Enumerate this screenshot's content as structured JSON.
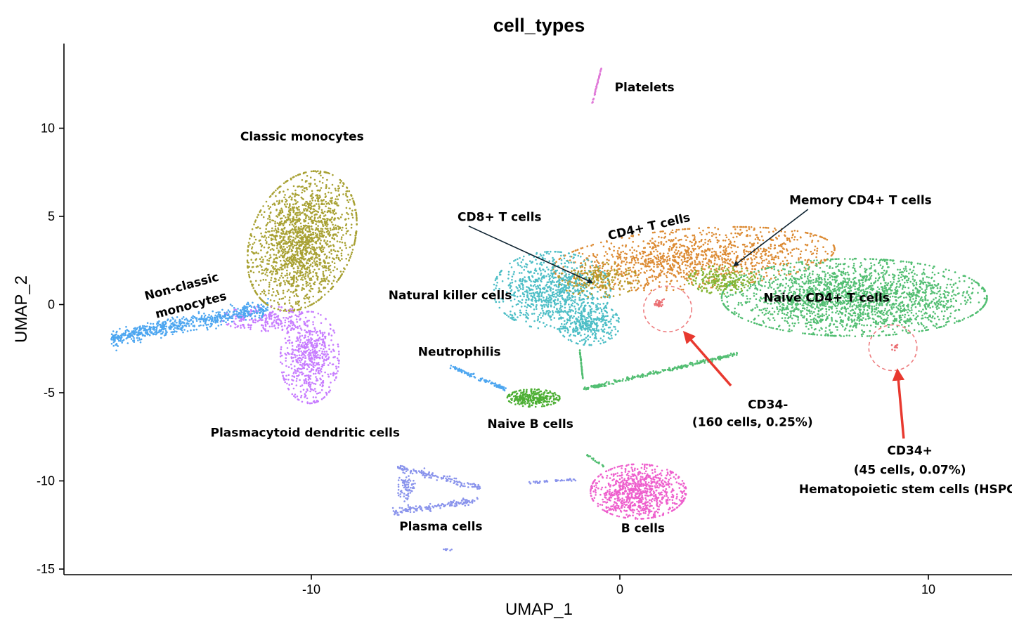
{
  "chart_data": {
    "type": "scatter",
    "title": "cell_types",
    "xlabel": "UMAP_1",
    "ylabel": "UMAP_2",
    "xlim": [
      -20.2,
      12.6
    ],
    "ylim": [
      -15.4,
      15
    ],
    "xticks": [
      {
        "value": -10,
        "label": "-10"
      },
      {
        "value": 0,
        "label": "0"
      },
      {
        "value": 10,
        "label": "10"
      }
    ],
    "yticks": [
      {
        "value": 10,
        "label": "10"
      },
      {
        "value": 5,
        "label": "5"
      },
      {
        "value": 0,
        "label": "0"
      },
      {
        "value": -5,
        "label": "-5"
      },
      {
        "value": -10,
        "label": "-10"
      },
      {
        "value": -15,
        "label": "-15"
      }
    ],
    "grid": false,
    "legend": "none",
    "clusters": [
      {
        "color": "#A8A133",
        "n": 1800,
        "shape": "ellipse",
        "cx": -10.3,
        "cy": 3.6,
        "rx": 1.7,
        "ry": 4.0,
        "rot": -8
      },
      {
        "color": "#C77CFF",
        "n": 600,
        "shape": "ellipse",
        "cx": -10.05,
        "cy": -3.0,
        "rx": 0.95,
        "ry": 2.6,
        "rot": 0
      },
      {
        "color": "#C77CFF",
        "n": 220,
        "shape": "ellipse",
        "cx": -11.5,
        "cy": -0.8,
        "rx": 1.4,
        "ry": 0.7,
        "rot": 0
      },
      {
        "color": "#4DA6F0",
        "n": 650,
        "shape": "band",
        "x0": -16.5,
        "y0": -1.9,
        "x1": -11.4,
        "y1": -0.2,
        "w0": 0.55,
        "w1": 0.5
      },
      {
        "color": "#E07AD8",
        "n": 60,
        "shape": "band",
        "x0": -0.9,
        "y0": 11.4,
        "x1": -0.6,
        "y1": 13.4,
        "w0": 0.12,
        "w1": 0.08
      },
      {
        "color": "#DC8A32",
        "n": 1300,
        "shape": "ellipse",
        "cx": 2.4,
        "cy": 2.6,
        "rx": 4.6,
        "ry": 1.7,
        "rot": 8
      },
      {
        "color": "#4DBEC6",
        "n": 900,
        "shape": "ellipse",
        "cx": -2.2,
        "cy": 0.8,
        "rx": 1.9,
        "ry": 2.2,
        "rot": 0
      },
      {
        "color": "#4DBEC6",
        "n": 350,
        "shape": "ellipse",
        "cx": -1.0,
        "cy": -1.1,
        "rx": 1.0,
        "ry": 1.2,
        "rot": 0
      },
      {
        "color": "#B79A28",
        "n": 200,
        "shape": "ellipse",
        "cx": -0.7,
        "cy": 1.4,
        "rx": 1.3,
        "ry": 1.0,
        "rot": 0
      },
      {
        "color": "#52BE72",
        "n": 2300,
        "shape": "ellipse",
        "cx": 7.6,
        "cy": 0.4,
        "rx": 4.3,
        "ry": 2.2,
        "rot": 0
      },
      {
        "color": "#84B534",
        "n": 220,
        "shape": "ellipse",
        "cx": 3.3,
        "cy": 1.4,
        "rx": 1.1,
        "ry": 0.8,
        "rot": 0
      },
      {
        "color": "#52BE72",
        "n": 260,
        "shape": "band",
        "x0": -1.2,
        "y0": -4.8,
        "x1": 3.8,
        "y1": -2.8,
        "w0": 0.12,
        "w1": 0.1
      },
      {
        "color": "#52BE72",
        "n": 70,
        "shape": "band",
        "x0": -1.2,
        "y0": -4.2,
        "x1": -1.3,
        "y1": -2.6,
        "w0": 0.12,
        "w1": 0.12
      },
      {
        "color": "#4DAF34",
        "n": 320,
        "shape": "ellipse",
        "cx": -2.8,
        "cy": -5.3,
        "rx": 0.85,
        "ry": 0.5,
        "rot": 0
      },
      {
        "color": "#4DA6F0",
        "n": 110,
        "shape": "band",
        "x0": -5.5,
        "y0": -3.5,
        "x1": -3.7,
        "y1": -4.8,
        "w0": 0.12,
        "w1": 0.12
      },
      {
        "color": "#EE5FCD",
        "n": 900,
        "shape": "ellipse",
        "cx": 0.6,
        "cy": -10.6,
        "rx": 1.55,
        "ry": 1.55,
        "rot": 0
      },
      {
        "color": "#52BE72",
        "n": 20,
        "shape": "band",
        "x0": -1.1,
        "y0": -8.5,
        "x1": -0.5,
        "y1": -9.2,
        "w0": 0.05,
        "w1": 0.05
      },
      {
        "color": "#8A94EC",
        "n": 130,
        "shape": "band",
        "x0": -7.2,
        "y0": -9.2,
        "x1": -4.5,
        "y1": -10.4,
        "w0": 0.2,
        "w1": 0.2
      },
      {
        "color": "#8A94EC",
        "n": 150,
        "shape": "band",
        "x0": -7.4,
        "y0": -11.8,
        "x1": -4.6,
        "y1": -11.1,
        "w0": 0.25,
        "w1": 0.2
      },
      {
        "color": "#8A94EC",
        "n": 80,
        "shape": "ellipse",
        "cx": -6.9,
        "cy": -10.4,
        "rx": 0.3,
        "ry": 1.0,
        "rot": 0
      },
      {
        "color": "#8A94EC",
        "n": 40,
        "shape": "band",
        "x0": -3.1,
        "y0": -10.1,
        "x1": -1.4,
        "y1": -9.9,
        "w0": 0.08,
        "w1": 0.08
      },
      {
        "color": "#8A94EC",
        "n": 10,
        "shape": "ellipse",
        "cx": -5.6,
        "cy": -13.9,
        "rx": 0.15,
        "ry": 0.08,
        "rot": 0
      },
      {
        "color": "#EB6E72",
        "n": 30,
        "shape": "ellipse",
        "cx": 1.3,
        "cy": 0.1,
        "rx": 0.18,
        "ry": 0.3,
        "rot": 0
      },
      {
        "color": "#EB6E72",
        "n": 12,
        "shape": "ellipse",
        "cx": 8.9,
        "cy": -2.4,
        "rx": 0.12,
        "ry": 0.2,
        "rot": 0
      }
    ],
    "annotations": [
      {
        "text": "Platelets",
        "x": 0.8,
        "y": 12.3,
        "rot": 0
      },
      {
        "text": "Classic monocytes",
        "x": -10.3,
        "y": 9.5,
        "rot": 0
      },
      {
        "text": "Non-classic",
        "x": -14.2,
        "y": 1.0,
        "rot": -15
      },
      {
        "text": "monocytes",
        "x": -13.9,
        "y": -0.05,
        "rot": -15
      },
      {
        "text": "Plasmacytoid dendritic cells",
        "x": -10.2,
        "y": -7.3,
        "rot": 0
      },
      {
        "text": "CD8+ T cells",
        "x": -3.9,
        "y": 4.95,
        "rot": 0
      },
      {
        "text": "CD4+ T cells",
        "x": 0.95,
        "y": 4.4,
        "rot": -13
      },
      {
        "text": "Memory CD4+ T cells",
        "x": 7.8,
        "y": 5.9,
        "rot": 0
      },
      {
        "text": "Natural killer cells",
        "x": -5.5,
        "y": 0.5,
        "rot": 0
      },
      {
        "text": "Naive CD4+ T cells",
        "x": 6.7,
        "y": 0.35,
        "rot": 0
      },
      {
        "text": "Neutrophilis",
        "x": -5.2,
        "y": -2.7,
        "rot": 0
      },
      {
        "text": "Naive B cells",
        "x": -2.9,
        "y": -6.8,
        "rot": 0
      },
      {
        "text": "CD34-",
        "x": 4.8,
        "y": -5.7,
        "rot": 0
      },
      {
        "text": "(160 cells, 0.25%)",
        "x": 4.3,
        "y": -6.7,
        "rot": 0
      },
      {
        "text": "CD34+",
        "x": 9.4,
        "y": -8.3,
        "rot": 0
      },
      {
        "text": "(45 cells, 0.07%)",
        "x": 9.4,
        "y": -9.4,
        "rot": 0
      },
      {
        "text": "Hematopoietic stem cells (HSPC)",
        "x": 9.4,
        "y": -10.5,
        "rot": 0
      },
      {
        "text": "Plasma cells",
        "x": -5.8,
        "y": -12.6,
        "rot": 0
      },
      {
        "text": "B cells",
        "x": 0.75,
        "y": -12.7,
        "rot": 0
      }
    ],
    "arrows": [
      {
        "from": [
          -4.9,
          4.45
        ],
        "to": [
          -0.9,
          1.25
        ],
        "color": "#0d2230",
        "width": 1.6
      },
      {
        "from": [
          6.1,
          5.4
        ],
        "to": [
          3.7,
          2.2
        ],
        "color": "#0d2230",
        "width": 1.6
      },
      {
        "from": [
          3.6,
          -4.6
        ],
        "to": [
          2.1,
          -1.6
        ],
        "color": "#E8392F",
        "width": 3.5
      },
      {
        "from": [
          9.2,
          -7.6
        ],
        "to": [
          9.0,
          -3.75
        ],
        "color": "#E8392F",
        "width": 3.5
      }
    ],
    "circles": [
      {
        "cx": 1.55,
        "cy": -0.25,
        "r": 0.78,
        "color": "#EE7E80"
      },
      {
        "cx": 8.85,
        "cy": -2.45,
        "r": 0.78,
        "color": "#EE7E80"
      }
    ]
  }
}
